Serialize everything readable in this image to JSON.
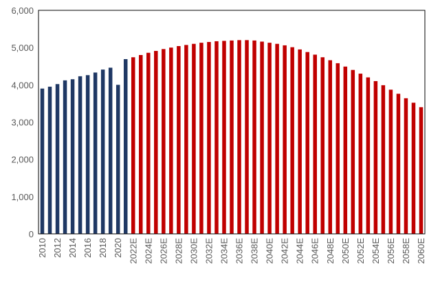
{
  "chart_data": {
    "type": "bar",
    "title": "",
    "xlabel": "",
    "ylabel": "",
    "ylim": [
      0,
      6000
    ],
    "y_ticks": [
      "0",
      "1,000",
      "2,000",
      "3,000",
      "4,000",
      "5,000",
      "6,000"
    ],
    "y_tick_values": [
      0,
      1000,
      2000,
      3000,
      4000,
      5000,
      6000
    ],
    "grid": false,
    "legend": "none",
    "categories": [
      "2010",
      "2011",
      "2012",
      "2013",
      "2014",
      "2015",
      "2016",
      "2017",
      "2018",
      "2019",
      "2020",
      "2021",
      "2022E",
      "2023E",
      "2024E",
      "2025E",
      "2026E",
      "2027E",
      "2028E",
      "2029E",
      "2030E",
      "2031E",
      "2032E",
      "2033E",
      "2034E",
      "2035E",
      "2036E",
      "2037E",
      "2038E",
      "2039E",
      "2040E",
      "2041E",
      "2042E",
      "2043E",
      "2044E",
      "2045E",
      "2046E",
      "2047E",
      "2048E",
      "2049E",
      "2050E",
      "2051E",
      "2052E",
      "2053E",
      "2054E",
      "2055E",
      "2056E",
      "2057E",
      "2058E",
      "2059E",
      "2060E"
    ],
    "x_tick_labels": [
      "2010",
      "2012",
      "2014",
      "2016",
      "2018",
      "2020",
      "2022E",
      "2024E",
      "2026E",
      "2028E",
      "2030E",
      "2032E",
      "2034E",
      "2036E",
      "2038E",
      "2040E",
      "2042E",
      "2044E",
      "2046E",
      "2048E",
      "2050E",
      "2052E",
      "2054E",
      "2056E",
      "2058E",
      "2060E"
    ],
    "values": [
      3900,
      3950,
      4020,
      4120,
      4150,
      4230,
      4260,
      4330,
      4410,
      4460,
      4000,
      4690,
      4740,
      4800,
      4860,
      4910,
      4960,
      5000,
      5040,
      5070,
      5100,
      5130,
      5150,
      5170,
      5180,
      5190,
      5200,
      5200,
      5190,
      5160,
      5130,
      5100,
      5060,
      5010,
      4950,
      4880,
      4810,
      4740,
      4660,
      4580,
      4490,
      4400,
      4300,
      4200,
      4100,
      3990,
      3870,
      3760,
      3640,
      3520,
      3400
    ],
    "colors": {
      "actual": "#1f3864",
      "estimate": "#c00000"
    },
    "first_estimate_index": 12
  }
}
